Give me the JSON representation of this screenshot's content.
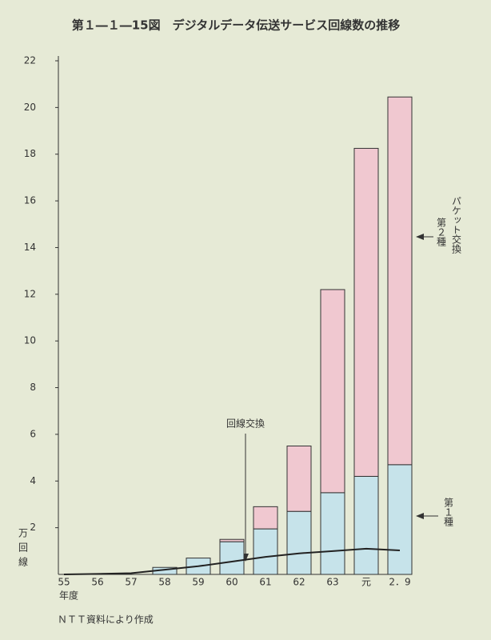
{
  "chart_data": {
    "type": "stacked-bar-line",
    "title": "第１―１―15図　デジタルデータ伝送サービス回線数の推移",
    "y_label": "万回線",
    "x_label": "年度",
    "source": "ＮＴＴ資料により作成",
    "categories": [
      "55",
      "56",
      "57",
      "58",
      "59",
      "60",
      "61",
      "62",
      "63",
      "元",
      "2．9"
    ],
    "series": [
      {
        "name": "第１種",
        "color": "#c6e3ea",
        "values": [
          null,
          null,
          null,
          0.3,
          0.7,
          1.4,
          1.95,
          2.7,
          3.5,
          4.2,
          4.7
        ]
      },
      {
        "name": "第２種",
        "color": "#f0c8d0",
        "values": [
          null,
          null,
          null,
          null,
          null,
          0.1,
          0.95,
          2.8,
          8.7,
          14.05,
          15.75
        ]
      },
      {
        "name": "回線交換",
        "color": "#222222",
        "values": [
          0,
          0.02,
          0.05,
          0.2,
          0.35,
          0.55,
          0.75,
          0.9,
          1.0,
          1.1,
          1.03
        ]
      }
    ],
    "annotations": [
      "パケット交換"
    ],
    "ylim": [
      0,
      22
    ],
    "yticks": [
      2,
      4,
      6,
      8,
      10,
      12,
      14,
      16,
      18,
      20,
      22
    ]
  }
}
